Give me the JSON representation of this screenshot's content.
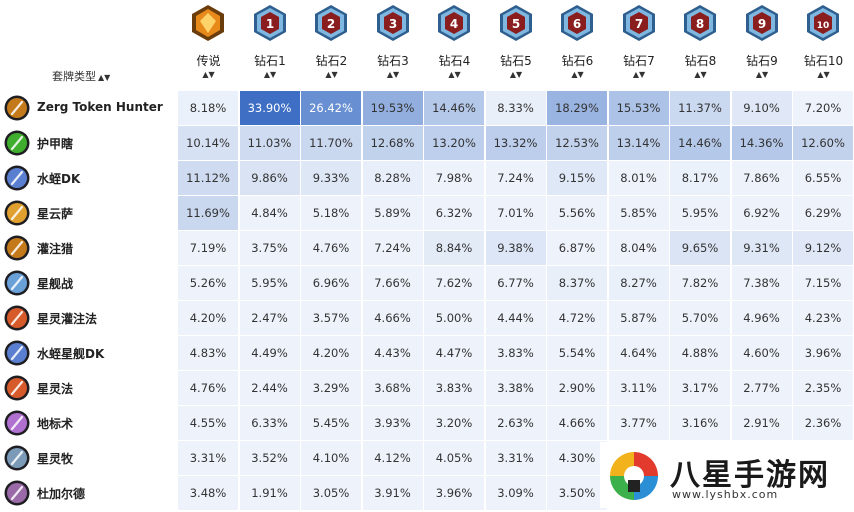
{
  "header": {
    "deck_type_label": "套牌类型",
    "sort_arrows": "▲▼",
    "columns": [
      {
        "label": "传说",
        "badge": "legend",
        "sort": "▲▼"
      },
      {
        "label": "钻石1",
        "badge": "1",
        "sort": "▲▼"
      },
      {
        "label": "钻石2",
        "badge": "2",
        "sort": "▲▼"
      },
      {
        "label": "钻石3",
        "badge": "3",
        "sort": "▲▼"
      },
      {
        "label": "钻石4",
        "badge": "4",
        "sort": "▲▼"
      },
      {
        "label": "钻石5",
        "badge": "5",
        "sort": "▲▼"
      },
      {
        "label": "钻石6",
        "badge": "6",
        "sort": "▲▼"
      },
      {
        "label": "钻石7",
        "badge": "7",
        "sort": "▲▼"
      },
      {
        "label": "钻石8",
        "badge": "8",
        "sort": "▲▼"
      },
      {
        "label": "钻石9",
        "badge": "9",
        "sort": "▲▼"
      },
      {
        "label": "钻石10",
        "badge": "10",
        "sort": "▲▼"
      }
    ]
  },
  "rows": [
    {
      "name": "Zerg Token Hunter",
      "icon": "hunter-class-icon",
      "icon_color": "#c47a1a",
      "values": [
        "8.18%",
        "33.90%",
        "26.42%",
        "19.53%",
        "14.46%",
        "8.33%",
        "18.29%",
        "15.53%",
        "11.37%",
        "9.10%",
        "7.20%"
      ]
    },
    {
      "name": "护甲瞎",
      "icon": "demon-hunter-class-icon",
      "icon_color": "#3fae2e",
      "values": [
        "10.14%",
        "11.03%",
        "11.70%",
        "12.68%",
        "13.20%",
        "13.32%",
        "12.53%",
        "13.14%",
        "14.46%",
        "14.36%",
        "12.60%"
      ]
    },
    {
      "name": "水蛭DK",
      "icon": "death-knight-class-icon",
      "icon_color": "#5a7fd0",
      "values": [
        "11.12%",
        "9.86%",
        "9.33%",
        "8.28%",
        "7.98%",
        "7.24%",
        "9.15%",
        "8.01%",
        "8.17%",
        "7.86%",
        "6.55%"
      ]
    },
    {
      "name": "星云萨",
      "icon": "shaman-class-icon",
      "icon_color": "#e0a030",
      "values": [
        "11.69%",
        "4.84%",
        "5.18%",
        "5.89%",
        "6.32%",
        "7.01%",
        "5.56%",
        "5.85%",
        "5.95%",
        "6.92%",
        "6.29%"
      ]
    },
    {
      "name": "灌注猎",
      "icon": "hunter-class-icon",
      "icon_color": "#c47a1a",
      "values": [
        "7.19%",
        "3.75%",
        "4.76%",
        "7.24%",
        "8.84%",
        "9.38%",
        "6.87%",
        "8.04%",
        "9.65%",
        "9.31%",
        "9.12%"
      ]
    },
    {
      "name": "星舰战",
      "icon": "warrior-class-icon",
      "icon_color": "#6aa0d8",
      "values": [
        "5.26%",
        "5.95%",
        "6.96%",
        "7.66%",
        "7.62%",
        "6.77%",
        "8.37%",
        "8.27%",
        "7.82%",
        "7.38%",
        "7.15%"
      ]
    },
    {
      "name": "星灵灌注法",
      "icon": "mage-class-icon",
      "icon_color": "#d65a2a",
      "values": [
        "4.20%",
        "2.47%",
        "3.57%",
        "4.66%",
        "5.00%",
        "4.44%",
        "4.72%",
        "5.87%",
        "5.70%",
        "4.96%",
        "4.23%"
      ]
    },
    {
      "name": "水蛭星舰DK",
      "icon": "death-knight-class-icon",
      "icon_color": "#5a7fd0",
      "values": [
        "4.83%",
        "4.49%",
        "4.20%",
        "4.43%",
        "4.47%",
        "3.83%",
        "5.54%",
        "4.64%",
        "4.88%",
        "4.60%",
        "3.96%"
      ]
    },
    {
      "name": "星灵法",
      "icon": "mage-class-icon",
      "icon_color": "#d65a2a",
      "values": [
        "4.76%",
        "2.44%",
        "3.29%",
        "3.68%",
        "3.83%",
        "3.38%",
        "2.90%",
        "3.11%",
        "3.17%",
        "2.77%",
        "2.35%"
      ]
    },
    {
      "name": "地标术",
      "icon": "warlock-class-icon",
      "icon_color": "#b070d0",
      "values": [
        "4.55%",
        "6.33%",
        "5.45%",
        "3.93%",
        "3.20%",
        "2.63%",
        "4.66%",
        "3.77%",
        "3.16%",
        "2.91%",
        "2.36%"
      ]
    },
    {
      "name": "星灵牧",
      "icon": "priest-class-icon",
      "icon_color": "#7a9ab8",
      "values": [
        "3.31%",
        "3.52%",
        "4.10%",
        "4.12%",
        "4.05%",
        "3.31%",
        "4.30%",
        "",
        "",
        "",
        ""
      ]
    },
    {
      "name": "杜加尔德",
      "icon": "priest-class-icon",
      "icon_color": "#9a6aa8",
      "values": [
        "3.48%",
        "1.91%",
        "3.05%",
        "3.91%",
        "3.96%",
        "3.09%",
        "3.50%",
        "",
        "",
        "",
        ""
      ]
    }
  ],
  "watermark": {
    "text": "八星手游网",
    "url": "www.lyshbx.com"
  },
  "colors": {
    "row_even": "#eef3fb",
    "row_odd": "#f7f9fd",
    "heat_max": "#3d6fc4",
    "heat_min": "#eef3fb"
  }
}
